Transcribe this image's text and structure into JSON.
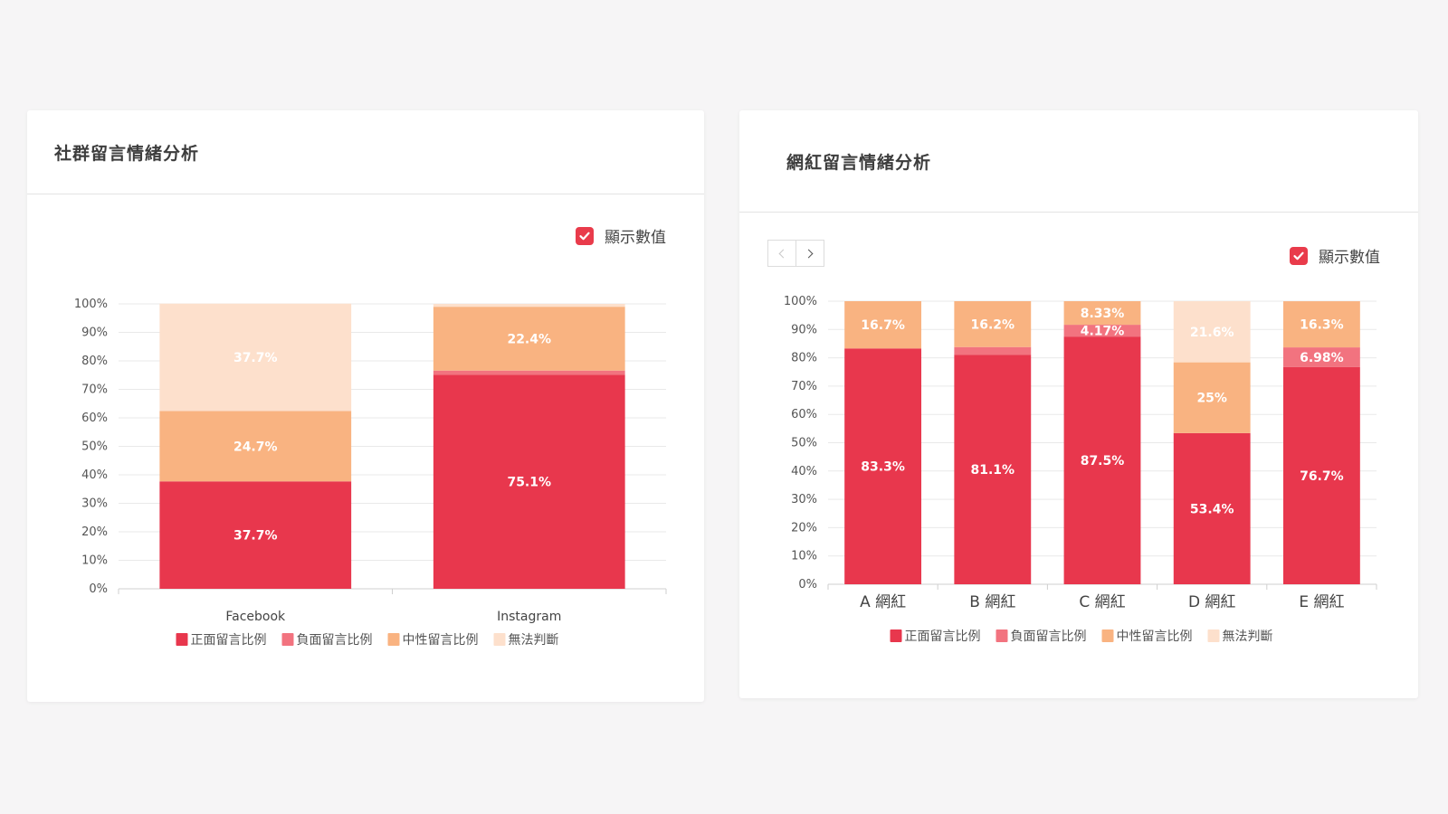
{
  "toggle_label": "顯示數值",
  "chart_data": [
    {
      "type": "bar",
      "stacked": true,
      "title": "社群留言情緒分析",
      "categories": [
        "Facebook",
        "Instagram"
      ],
      "series": [
        {
          "name": "正面留言比例",
          "color": "#e8374d",
          "values": [
            37.7,
            75.1
          ],
          "labels": [
            "37.7%",
            "75.1%"
          ]
        },
        {
          "name": "負面留言比例",
          "color": "#f2737f",
          "values": [
            0,
            1.5
          ],
          "labels": [
            "",
            ""
          ]
        },
        {
          "name": "中性留言比例",
          "color": "#f9b381",
          "values": [
            24.7,
            22.4
          ],
          "labels": [
            "24.7%",
            "22.4%"
          ]
        },
        {
          "name": "無法判斷",
          "color": "#fde0cc",
          "values": [
            37.7,
            1.0
          ],
          "labels": [
            "37.7%",
            ""
          ]
        }
      ],
      "yticks": [
        "0%",
        "10%",
        "20%",
        "30%",
        "40%",
        "50%",
        "60%",
        "70%",
        "80%",
        "90%",
        "100%"
      ],
      "ylim": [
        0,
        100
      ],
      "grid": true,
      "legend": "bottom",
      "show_values": true
    },
    {
      "type": "bar",
      "stacked": true,
      "title": "網紅留言情緒分析",
      "categories": [
        "A 網紅",
        "B 網紅",
        "C 網紅",
        "D 網紅",
        "E 網紅"
      ],
      "series": [
        {
          "name": "正面留言比例",
          "color": "#e8374d",
          "values": [
            83.3,
            81.1,
            87.5,
            53.4,
            76.7
          ],
          "labels": [
            "83.3%",
            "81.1%",
            "87.5%",
            "53.4%",
            "76.7%"
          ]
        },
        {
          "name": "負面留言比例",
          "color": "#f2737f",
          "values": [
            0,
            2.7,
            4.17,
            0,
            6.98
          ],
          "labels": [
            "",
            "",
            "4.17%",
            "",
            "6.98%"
          ]
        },
        {
          "name": "中性留言比例",
          "color": "#f9b381",
          "values": [
            16.7,
            16.2,
            8.33,
            25,
            16.3
          ],
          "labels": [
            "16.7%",
            "16.2%",
            "8.33%",
            "25%",
            "16.3%"
          ]
        },
        {
          "name": "無法判斷",
          "color": "#fde0cc",
          "values": [
            0,
            0,
            0,
            21.6,
            0
          ],
          "labels": [
            "",
            "",
            "",
            "21.6%",
            ""
          ]
        }
      ],
      "yticks": [
        "0%",
        "10%",
        "20%",
        "30%",
        "40%",
        "50%",
        "60%",
        "70%",
        "80%",
        "90%",
        "100%"
      ],
      "ylim": [
        0,
        100
      ],
      "grid": true,
      "legend": "bottom",
      "show_values": true
    }
  ]
}
